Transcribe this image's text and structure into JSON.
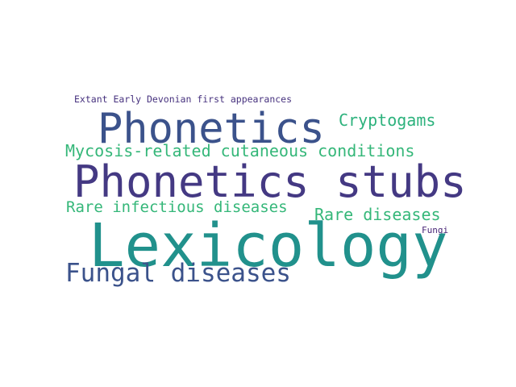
{
  "words": [
    {
      "id": "extant",
      "text": "Extant Early Devonian first appearances",
      "color": "#46317e"
    },
    {
      "id": "phonetics",
      "text": "Phonetics",
      "color": "#3b528b"
    },
    {
      "id": "cryptogams",
      "text": "Cryptogams",
      "color": "#2db27d"
    },
    {
      "id": "mycosis",
      "text": "Mycosis-related cutaneous conditions",
      "color": "#35b779"
    },
    {
      "id": "phonetics_stubs",
      "text": "Phonetics stubs",
      "color": "#443983"
    },
    {
      "id": "rare_infectious",
      "text": "Rare infectious diseases",
      "color": "#35b779"
    },
    {
      "id": "rare_diseases",
      "text": "Rare diseases",
      "color": "#35b779"
    },
    {
      "id": "fungi",
      "text": "Fungi",
      "color": "#482576"
    },
    {
      "id": "lexicology",
      "text": "Lexicology",
      "color": "#21918c"
    },
    {
      "id": "fungal_diseases",
      "text": "Fungal diseases",
      "color": "#3b528b"
    }
  ]
}
